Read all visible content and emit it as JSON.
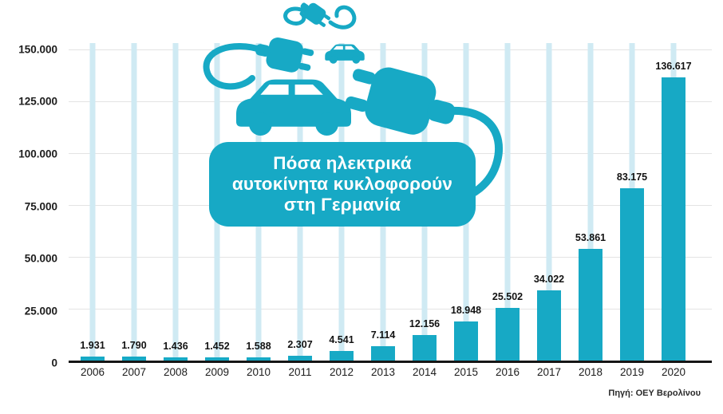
{
  "colors": {
    "accent": "#17a9c5",
    "accent_light": "#cfeaf3",
    "grid": "#e3e3e3",
    "axis": "#161616",
    "text": "#1c1c1c",
    "title_text": "#ffffff",
    "background": "#ffffff"
  },
  "title_box": {
    "lines": [
      "Πόσα ηλεκτρικά",
      "αυτοκίνητα κυκλοφορούν",
      "στη Γερμανία"
    ]
  },
  "source_note": "Πηγή: ΟΕΥ Βερολίνου",
  "chart_data": {
    "type": "bar",
    "title": "Πόσα ηλεκτρικά αυτοκίνητα κυκλοφορούν στη Γερμανία",
    "categories": [
      "2006",
      "2007",
      "2008",
      "2009",
      "2010",
      "2011",
      "2012",
      "2013",
      "2014",
      "2015",
      "2016",
      "2017",
      "2018",
      "2019",
      "2020"
    ],
    "values": [
      1931,
      1790,
      1436,
      1452,
      1588,
      2307,
      4541,
      7114,
      12156,
      18948,
      25502,
      34022,
      53861,
      83175,
      136617
    ],
    "value_labels": [
      "1.931",
      "1.790",
      "1.436",
      "1.452",
      "1.588",
      "2.307",
      "4.541",
      "7.114",
      "12.156",
      "18.948",
      "25.502",
      "34.022",
      "53.861",
      "83.175",
      "136.617"
    ],
    "xlabel": "",
    "ylabel": "",
    "ylim": [
      0,
      150000
    ],
    "y_ticks": [
      0,
      25000,
      50000,
      75000,
      100000,
      125000,
      150000
    ],
    "y_tick_labels": [
      "0",
      "25.000",
      "50.000",
      "75.000",
      "100.000",
      "125.000",
      "150.000"
    ],
    "grid": true,
    "legend": false,
    "bar_color": "#17a9c5",
    "source": "Πηγή: ΟΕΥ Βερολίνου"
  }
}
